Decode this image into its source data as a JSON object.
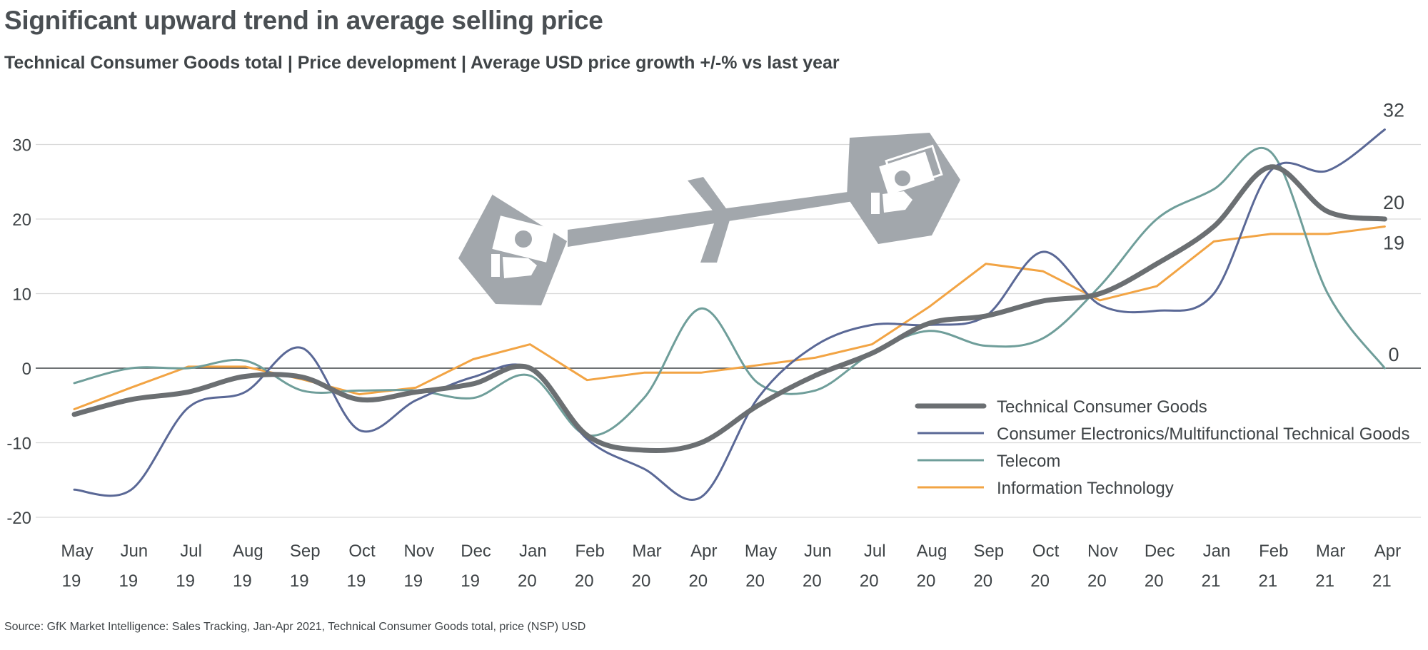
{
  "title": "Significant upward trend in average selling price",
  "subtitle": "Technical Consumer Goods total | Price development | Average USD price growth +/-% vs last year",
  "source": "Source: GfK Market Intelligence: Sales Tracking, Jan-Apr 2021, Technical Consumer Goods total, price (NSP) USD",
  "colors": {
    "tcg": "#6b6f72",
    "ce": "#5a6896",
    "telecom": "#6f9e9a",
    "it": "#f2a444",
    "icon": "#a2a7ac",
    "grid": "#d9d9d9",
    "zero": "#3f4447"
  },
  "chart_data": {
    "type": "line",
    "x_months": [
      "May",
      "Jun",
      "Jul",
      "Aug",
      "Sep",
      "Oct",
      "Nov",
      "Dec",
      "Jan",
      "Feb",
      "Mar",
      "Apr",
      "May",
      "Jun",
      "Jul",
      "Aug",
      "Sep",
      "Oct",
      "Nov",
      "Dec",
      "Jan",
      "Feb",
      "Mar",
      "Apr"
    ],
    "x_years": [
      "19",
      "19",
      "19",
      "19",
      "19",
      "19",
      "19",
      "19",
      "20",
      "20",
      "20",
      "20",
      "20",
      "20",
      "20",
      "20",
      "20",
      "20",
      "20",
      "20",
      "21",
      "21",
      "21",
      "21"
    ],
    "ylim": [
      -20,
      30
    ],
    "yticks": [
      -20,
      -10,
      0,
      10,
      20,
      30
    ],
    "grid": true,
    "legend_position": "bottom-right",
    "series": [
      {
        "name": "Technical Consumer Goods",
        "color": "#6b6f72",
        "width": 7,
        "smooth": true,
        "values": [
          -6.2,
          -4.2,
          -3.2,
          -1.1,
          -1.2,
          -4.2,
          -3.2,
          -2.1,
          0,
          -9,
          -11,
          -10,
          -5,
          -1,
          2,
          6,
          7,
          9,
          10,
          14,
          19,
          27,
          21,
          20
        ]
      },
      {
        "name": "Consumer Electronics/Multifunctional Technical Goods",
        "color": "#5a6896",
        "width": 3,
        "smooth": true,
        "values": [
          -16.3,
          -16.3,
          -5.3,
          -3.2,
          2.7,
          -8.3,
          -4.3,
          -1.2,
          0,
          -9.5,
          -13.5,
          -17.3,
          -4,
          3,
          5.8,
          5.8,
          7,
          15.6,
          8.5,
          7.7,
          10,
          26.5,
          26.5,
          32
        ]
      },
      {
        "name": "Telecom",
        "color": "#6f9e9a",
        "width": 3,
        "smooth": true,
        "values": [
          -2,
          0,
          0,
          1,
          -3,
          -3,
          -3,
          -4,
          -1,
          -9,
          -4,
          8,
          -2,
          -3,
          2,
          5,
          3,
          4,
          11,
          20,
          24,
          29,
          10,
          0
        ]
      },
      {
        "name": "Information Technology",
        "color": "#f2a444",
        "width": 3,
        "smooth": false,
        "values": [
          -5.5,
          -2.6,
          0.2,
          0.2,
          -1.5,
          -3.5,
          -2.6,
          1.2,
          3.2,
          -1.6,
          -0.6,
          -0.6,
          0.4,
          1.4,
          3.2,
          8.2,
          14,
          13,
          9.1,
          11,
          17,
          18,
          18,
          19
        ]
      }
    ],
    "end_labels": [
      {
        "series": 1,
        "text": "32"
      },
      {
        "series": 0,
        "text": "20"
      },
      {
        "series": 3,
        "text": "19"
      },
      {
        "series": 2,
        "text": "0"
      }
    ]
  }
}
